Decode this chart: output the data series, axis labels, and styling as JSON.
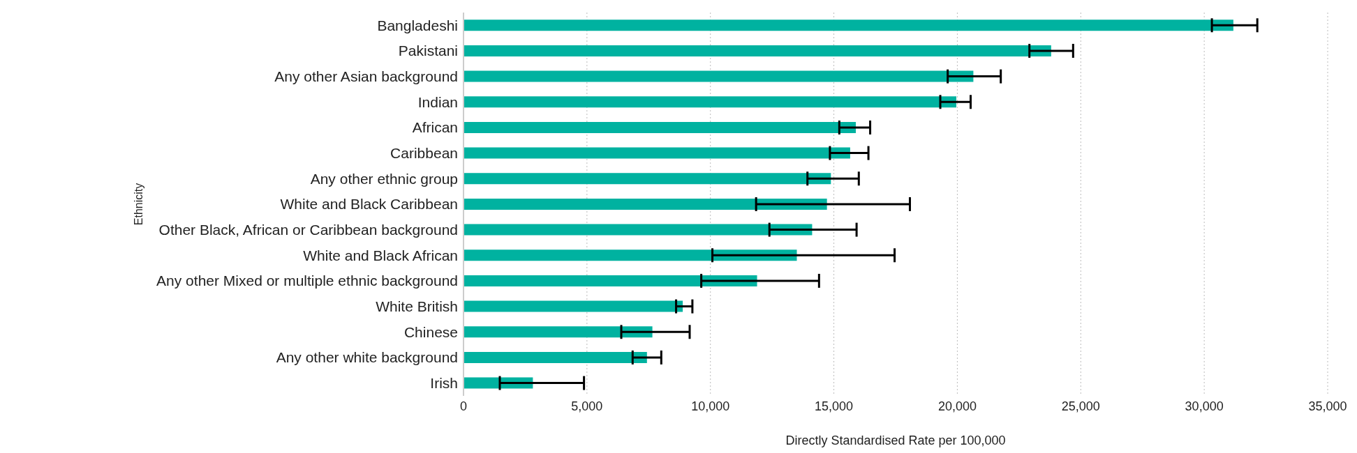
{
  "chart_data": {
    "type": "bar",
    "orientation": "horizontal",
    "xlabel": "Directly Standardised Rate per 100,000",
    "ylabel": "Ethnicity",
    "categories": [
      "Bangladeshi",
      "Pakistani",
      "Any other Asian background",
      "Indian",
      "African",
      "Caribbean",
      "Any other ethnic group",
      "White and Black Caribbean",
      "Other Black, African or Caribbean background",
      "White and Black African",
      "Any other Mixed or multiple ethnic background",
      "White British",
      "Chinese",
      "Any other white background",
      "Irish"
    ],
    "values": [
      31180,
      23800,
      20650,
      19960,
      15890,
      15660,
      14880,
      14720,
      14120,
      13500,
      11890,
      8880,
      7650,
      7430,
      2810
    ],
    "errors": [
      [
        30310,
        32150
      ],
      [
        22920,
        24690
      ],
      [
        19610,
        21760
      ],
      [
        19310,
        20540
      ],
      [
        15220,
        16470
      ],
      [
        14840,
        16400
      ],
      [
        13930,
        16010
      ],
      [
        11850,
        18080
      ],
      [
        12390,
        15920
      ],
      [
        10080,
        17460
      ],
      [
        9630,
        14400
      ],
      [
        8610,
        9270
      ],
      [
        6390,
        9160
      ],
      [
        6850,
        8010
      ],
      [
        1470,
        4880
      ]
    ],
    "color": "#00b2a0",
    "xlim": [
      0,
      35000
    ],
    "xticks": [
      0,
      {
        "value": 5000,
        "label": "5,000"
      },
      {
        "value": 10000,
        "label": "10,000"
      },
      {
        "value": 15000,
        "label": "15,000"
      },
      {
        "value": 20000,
        "label": "20,000"
      },
      {
        "value": 25000,
        "label": "25,000"
      },
      {
        "value": 30000,
        "label": "30,000"
      },
      {
        "value": 35000,
        "label": "35,000"
      }
    ],
    "grid": "x"
  }
}
